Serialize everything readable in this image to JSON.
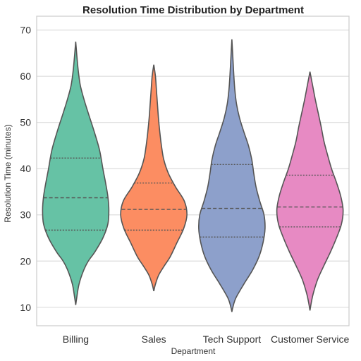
{
  "chart_data": {
    "type": "violin",
    "title": "Resolution Time Distribution by Department",
    "xlabel": "Department",
    "ylabel": "Resolution Time (minutes)",
    "ylim": [
      6,
      73
    ],
    "yticks": [
      10,
      20,
      30,
      40,
      50,
      60,
      70
    ],
    "grid": "horizontal",
    "categories": [
      "Billing",
      "Sales",
      "Tech Support",
      "Customer Service"
    ],
    "series": [
      {
        "category": "Billing",
        "color": "#66c2a5",
        "min": 10.5,
        "max": 67.5,
        "quartiles": [
          26.7,
          33.7,
          42.3
        ],
        "profile": [
          [
            10.5,
            0
          ],
          [
            12,
            0.03
          ],
          [
            15,
            0.1
          ],
          [
            18,
            0.24
          ],
          [
            20,
            0.38
          ],
          [
            22,
            0.58
          ],
          [
            25,
            0.82
          ],
          [
            28,
            0.97
          ],
          [
            31,
            1.0
          ],
          [
            34,
            0.97
          ],
          [
            37,
            0.9
          ],
          [
            40,
            0.82
          ],
          [
            44,
            0.72
          ],
          [
            48,
            0.56
          ],
          [
            52,
            0.38
          ],
          [
            55,
            0.25
          ],
          [
            58,
            0.14
          ],
          [
            61,
            0.08
          ],
          [
            64,
            0.04
          ],
          [
            67.5,
            0
          ]
        ]
      },
      {
        "category": "Sales",
        "color": "#fc8d62",
        "min": 13.5,
        "max": 62.5,
        "quartiles": [
          26.7,
          31.2,
          36.9
        ],
        "profile": [
          [
            13.5,
            0
          ],
          [
            15,
            0.05
          ],
          [
            17,
            0.15
          ],
          [
            19,
            0.32
          ],
          [
            21,
            0.5
          ],
          [
            24,
            0.7
          ],
          [
            27,
            0.9
          ],
          [
            30,
            1.0
          ],
          [
            33,
            0.92
          ],
          [
            36,
            0.66
          ],
          [
            39,
            0.44
          ],
          [
            42,
            0.3
          ],
          [
            45,
            0.23
          ],
          [
            48,
            0.18
          ],
          [
            51,
            0.14
          ],
          [
            54,
            0.11
          ],
          [
            57,
            0.08
          ],
          [
            60,
            0.05
          ],
          [
            62.5,
            0
          ]
        ]
      },
      {
        "category": "Tech Support",
        "color": "#8da0cb",
        "min": 9.0,
        "max": 68.0,
        "quartiles": [
          25.2,
          31.4,
          40.9
        ],
        "profile": [
          [
            9.0,
            0
          ],
          [
            10,
            0.03
          ],
          [
            12,
            0.12
          ],
          [
            15,
            0.36
          ],
          [
            18,
            0.62
          ],
          [
            21,
            0.82
          ],
          [
            24,
            0.94
          ],
          [
            27,
            1.0
          ],
          [
            30,
            0.97
          ],
          [
            33,
            0.84
          ],
          [
            36,
            0.73
          ],
          [
            39,
            0.66
          ],
          [
            42,
            0.6
          ],
          [
            45,
            0.5
          ],
          [
            48,
            0.36
          ],
          [
            51,
            0.23
          ],
          [
            54,
            0.14
          ],
          [
            57,
            0.09
          ],
          [
            60,
            0.06
          ],
          [
            64,
            0.03
          ],
          [
            68,
            0
          ]
        ]
      },
      {
        "category": "Customer Service",
        "color": "#e78ac3",
        "min": 9.3,
        "max": 61.0,
        "quartiles": [
          27.4,
          31.7,
          38.6
        ],
        "profile": [
          [
            9.3,
            0
          ],
          [
            11,
            0.04
          ],
          [
            13,
            0.1
          ],
          [
            16,
            0.23
          ],
          [
            19,
            0.42
          ],
          [
            22,
            0.62
          ],
          [
            25,
            0.8
          ],
          [
            28,
            0.95
          ],
          [
            31,
            1.0
          ],
          [
            34,
            0.93
          ],
          [
            37,
            0.8
          ],
          [
            40,
            0.65
          ],
          [
            43,
            0.53
          ],
          [
            46,
            0.42
          ],
          [
            49,
            0.34
          ],
          [
            52,
            0.25
          ],
          [
            55,
            0.16
          ],
          [
            58,
            0.08
          ],
          [
            61,
            0
          ]
        ]
      }
    ]
  }
}
